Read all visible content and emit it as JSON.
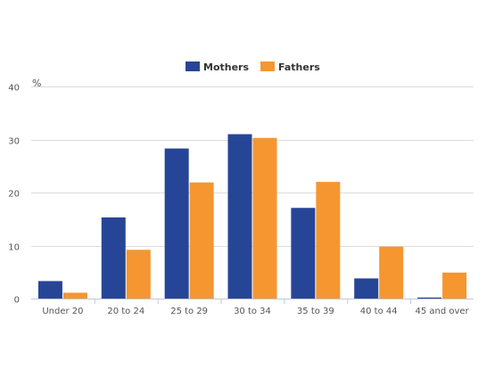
{
  "chart_data": {
    "type": "bar",
    "title": "",
    "xlabel": "",
    "ylabel": "%",
    "ylim": [
      0,
      40
    ],
    "yticks": [
      0,
      10,
      20,
      30,
      40
    ],
    "grid": true,
    "legend_position": "top-center",
    "categories": [
      "Under 20",
      "20 to 24",
      "25 to 29",
      "30 to 34",
      "35 to 39",
      "40 to 44",
      "45 and over"
    ],
    "series": [
      {
        "name": "Mothers",
        "color": "#274597",
        "values": [
          3.3,
          15.3,
          28.3,
          31.0,
          17.1,
          3.8,
          0.2
        ]
      },
      {
        "name": "Fathers",
        "color": "#f59630",
        "values": [
          1.1,
          9.2,
          21.9,
          30.3,
          22.0,
          9.8,
          4.9
        ]
      }
    ]
  }
}
